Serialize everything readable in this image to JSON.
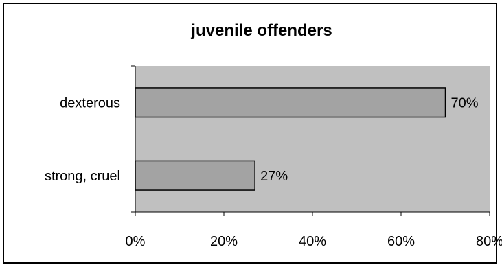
{
  "chart_data": {
    "type": "bar",
    "orientation": "horizontal",
    "title": "juvenile offenders",
    "categories": [
      "dexterous",
      "strong, cruel"
    ],
    "values": [
      70,
      27
    ],
    "value_labels": [
      "70%",
      "27%"
    ],
    "xlim": [
      0,
      80
    ],
    "x_ticks": [
      0,
      20,
      40,
      60,
      80
    ],
    "x_tick_labels": [
      "0%",
      "20%",
      "40%",
      "60%",
      "80%"
    ],
    "grid": false,
    "legend": "none"
  },
  "colors": {
    "plot_area": "#c0c0c0",
    "bar_fill": "#a3a3a3",
    "bar_stroke": "#000000"
  }
}
